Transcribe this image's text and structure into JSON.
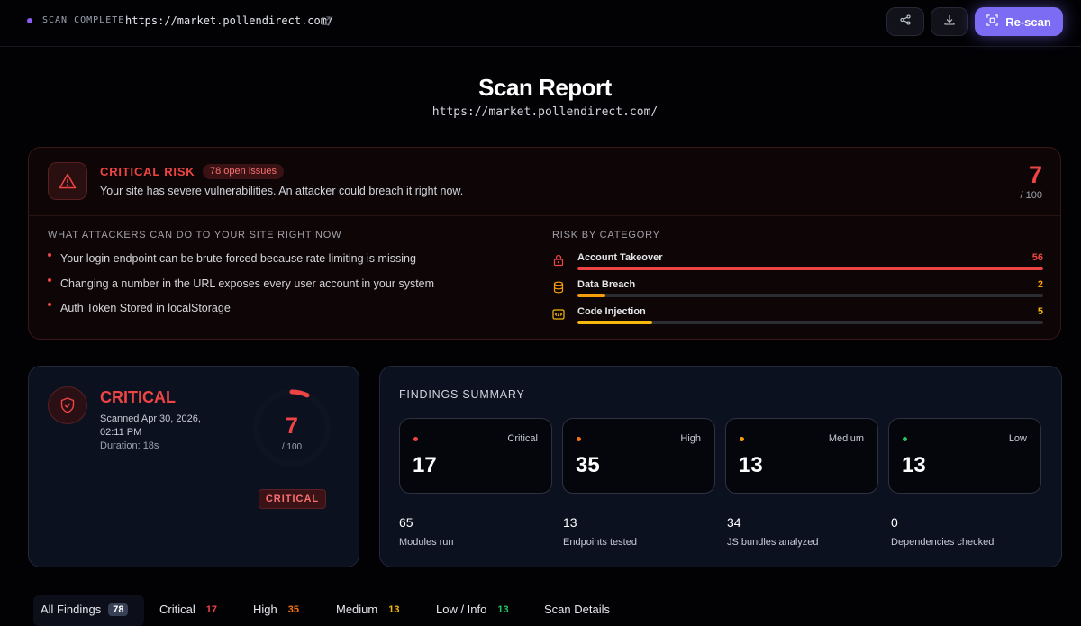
{
  "topbar": {
    "status": "SCAN COMPLETE",
    "url": "https://market.pollendirect.com/",
    "share_icon": "share-icon",
    "download_icon": "download-icon",
    "rescan_label": "Re-scan",
    "accent": "#7c6cf3"
  },
  "header": {
    "title": "Scan Report",
    "url": "https://market.pollendirect.com/"
  },
  "risk": {
    "level": "CRITICAL RISK",
    "open_issues": "78 open issues",
    "description": "Your site has severe vulnerabilities. An attacker could breach it right now.",
    "score": "7",
    "score_max": "/ 100",
    "color": "#ef4444",
    "attacks_label": "WHAT ATTACKERS CAN DO TO YOUR SITE RIGHT NOW",
    "attacks": [
      "Your login endpoint can be brute-forced because rate limiting is missing",
      "Changing a number in the URL exposes every user account in your system",
      "Auth Token Stored in localStorage"
    ],
    "categories_label": "RISK BY CATEGORY",
    "categories": [
      {
        "name": "Account Takeover",
        "value": "56",
        "fill": 1.0,
        "color": "#ef4444",
        "icon": "lock-icon"
      },
      {
        "name": "Data Breach",
        "value": "2",
        "fill": 0.06,
        "color": "#f59e0b",
        "icon": "database-icon"
      },
      {
        "name": "Code Injection",
        "value": "5",
        "fill": 0.16,
        "color": "#f5b80b",
        "icon": "code-icon"
      }
    ]
  },
  "score_card": {
    "title": "CRITICAL",
    "scanned": "Scanned Apr 30, 2026, 02:11 PM",
    "duration": "Duration: 18s",
    "score": "7",
    "score_max": "/ 100",
    "score_fraction": 0.07,
    "badge": "CRITICAL"
  },
  "findings": {
    "label": "FINDINGS SUMMARY",
    "severities": [
      {
        "name": "Critical",
        "count": "17",
        "color": "#ef4444"
      },
      {
        "name": "High",
        "count": "35",
        "color": "#f97316"
      },
      {
        "name": "Medium",
        "count": "13",
        "color": "#f59e0b"
      },
      {
        "name": "Low",
        "count": "13",
        "color": "#22c55e"
      }
    ],
    "stats": [
      {
        "value": "65",
        "label": "Modules run"
      },
      {
        "value": "13",
        "label": "Endpoints tested"
      },
      {
        "value": "34",
        "label": "JS bundles analyzed"
      },
      {
        "value": "0",
        "label": "Dependencies checked"
      }
    ]
  },
  "tabs": [
    {
      "label": "All Findings",
      "count": "78",
      "color": "#ffffff"
    },
    {
      "label": "Critical",
      "count": "17",
      "color": "#ef4444"
    },
    {
      "label": "High",
      "count": "35",
      "color": "#f97316"
    },
    {
      "label": "Medium",
      "count": "13",
      "color": "#f5b80b"
    },
    {
      "label": "Low / Info",
      "count": "13",
      "color": "#22c55e"
    },
    {
      "label": "Scan Details",
      "count": "",
      "color": "#ffffff"
    }
  ]
}
